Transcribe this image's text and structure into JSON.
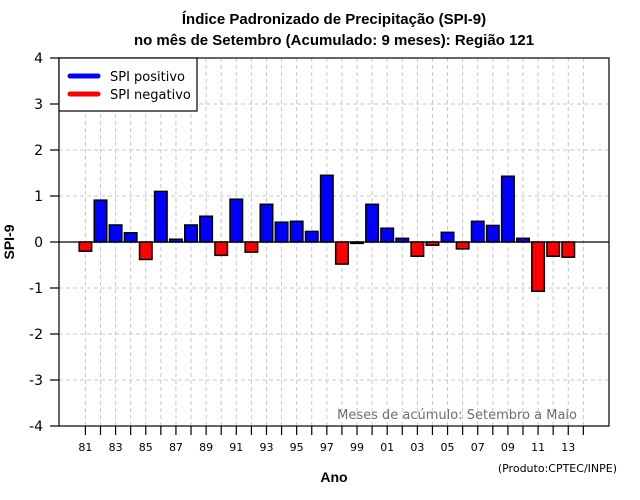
{
  "chart_data": {
    "type": "bar",
    "title": "Índice Padronizado de Precipitação (SPI-9)",
    "subtitle": "no mês de Setembro (Acumulado: 9 meses): Região 121",
    "xlabel": "Ano",
    "ylabel": "SPI-9",
    "ylim": [
      -4,
      4
    ],
    "yticks": [
      "-4",
      "-3",
      "-2",
      "-1",
      "0",
      "1",
      "2",
      "3",
      "4"
    ],
    "ytick_values": [
      -4,
      -3,
      -2,
      -1,
      0,
      1,
      2,
      3,
      4
    ],
    "xlim_years": [
      1979.25,
      2015.7
    ],
    "tick_years": [
      1981,
      1982,
      1983,
      1984,
      1985,
      1986,
      1987,
      1988,
      1989,
      1990,
      1991,
      1992,
      1993,
      1994,
      1995,
      1996,
      1997,
      1998,
      1999,
      2000,
      2001,
      2002,
      2003,
      2004,
      2005,
      2006,
      2007,
      2008,
      2009,
      2010,
      2011,
      2012,
      2013,
      2014
    ],
    "xtick_labels": [
      {
        "year": 1981,
        "label": "81"
      },
      {
        "year": 1983,
        "label": "83"
      },
      {
        "year": 1985,
        "label": "85"
      },
      {
        "year": 1987,
        "label": "87"
      },
      {
        "year": 1989,
        "label": "89"
      },
      {
        "year": 1991,
        "label": "91"
      },
      {
        "year": 1993,
        "label": "93"
      },
      {
        "year": 1995,
        "label": "95"
      },
      {
        "year": 1997,
        "label": "97"
      },
      {
        "year": 1999,
        "label": "99"
      },
      {
        "year": 2001,
        "label": "01"
      },
      {
        "year": 2003,
        "label": "03"
      },
      {
        "year": 2005,
        "label": "05"
      },
      {
        "year": 2007,
        "label": "07"
      },
      {
        "year": 2009,
        "label": "09"
      },
      {
        "year": 2011,
        "label": "11"
      },
      {
        "year": 2013,
        "label": "13"
      }
    ],
    "categories": [
      1981,
      1982,
      1983,
      1984,
      1985,
      1986,
      1987,
      1988,
      1989,
      1990,
      1991,
      1992,
      1993,
      1994,
      1995,
      1996,
      1997,
      1998,
      1999,
      2000,
      2001,
      2002,
      2003,
      2004,
      2005,
      2006,
      2007,
      2008,
      2009,
      2010,
      2011,
      2012,
      2013
    ],
    "values": [
      -0.2,
      0.91,
      0.37,
      0.2,
      -0.38,
      1.1,
      0.06,
      0.37,
      0.56,
      -0.29,
      0.93,
      -0.22,
      0.82,
      0.43,
      0.45,
      0.23,
      1.45,
      -0.48,
      -0.03,
      0.82,
      0.3,
      0.08,
      -0.31,
      -0.07,
      0.21,
      -0.15,
      0.45,
      0.36,
      1.43,
      0.08,
      -1.07,
      -0.31,
      -0.33
    ],
    "grid": true,
    "legend": {
      "position": "top-left",
      "entries": [
        {
          "label": "SPI positivo",
          "color": "#0000ff"
        },
        {
          "label": "SPI negativo",
          "color": "#ff0000"
        }
      ]
    },
    "colors": {
      "positive": "#0000ff",
      "negative": "#ff0000"
    },
    "annotation": "Meses de acúmulo: Setembro a Maio",
    "credit": "(Produto:CPTEC/INPE)"
  }
}
